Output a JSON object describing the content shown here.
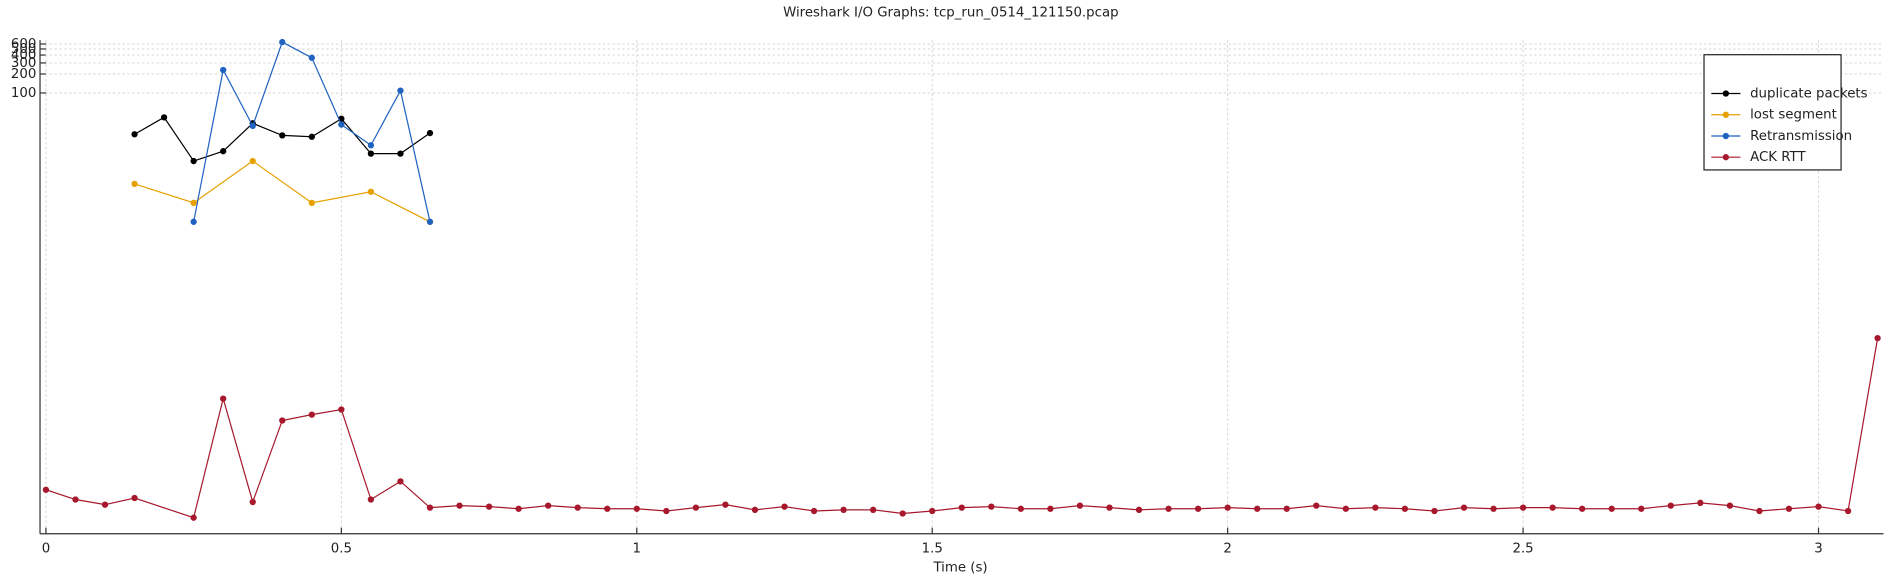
{
  "chart_data": {
    "type": "line",
    "title": "Wireshark I/O Graphs: tcp_run_0514_121150.pcap",
    "x_label": "Time (s)",
    "yscale": "log",
    "xlim": [
      -0.01,
      3.11
    ],
    "ylim": [
      1e-05,
      690
    ],
    "xticks": [
      0,
      0.5,
      1,
      1.5,
      2,
      2.5,
      3
    ],
    "yticks": [
      100,
      200,
      300,
      400,
      500,
      600
    ],
    "grid": true,
    "legend": "upper right",
    "series": [
      {
        "name": "duplicate packets",
        "color": "#000000",
        "x": [
          0.15,
          0.2,
          0.25,
          0.3,
          0.35,
          0.4,
          0.45,
          0.5,
          0.55,
          0.6,
          0.65
        ],
        "values": [
          22.1,
          41,
          8.3,
          11.9,
          33,
          21.2,
          20.2,
          39,
          10.9,
          10.9,
          23.1
        ]
      },
      {
        "name": "lost segment",
        "color": "#e6a000",
        "x": [
          0.15,
          0.25,
          0.35,
          0.45,
          0.55,
          0.65
        ],
        "values": [
          3.6,
          1.8,
          8.3,
          1.8,
          2.7,
          0.9
        ]
      },
      {
        "name": "Retransmission",
        "color": "#1f62c0",
        "x": [
          0.25,
          0.3,
          0.35,
          0.4,
          0.45,
          0.5,
          0.55,
          0.6,
          0.65
        ],
        "values": [
          0.9,
          232,
          30,
          644,
          362,
          31.5,
          14.8,
          109,
          0.9
        ]
      },
      {
        "name": "ACK RTT",
        "color": "#a8182c",
        "x": [
          0,
          0.05,
          0.1,
          0.15,
          0.25,
          0.3,
          0.35,
          0.4,
          0.45,
          0.5,
          0.55,
          0.6,
          0.65,
          0.7,
          0.75,
          0.8,
          0.85,
          0.9,
          0.95,
          1,
          1.05,
          1.1,
          1.15,
          1.2,
          1.25,
          1.3,
          1.35,
          1.4,
          1.45,
          1.5,
          1.55,
          1.6,
          1.65,
          1.7,
          1.75,
          1.8,
          1.85,
          1.9,
          1.95,
          2,
          2.05,
          2.1,
          2.15,
          2.2,
          2.25,
          2.3,
          2.35,
          2.4,
          2.45,
          2.5,
          2.55,
          2.6,
          2.65,
          2.7,
          2.75,
          2.8,
          2.85,
          2.9,
          2.95,
          3,
          3.05,
          3.1
        ],
        "values": [
          5e-05,
          3.5e-05,
          2.9e-05,
          3.7e-05,
          1.8e-05,
          0.0014,
          3.2e-05,
          0.00063,
          0.00078,
          0.00094,
          3.5e-05,
          6.8e-05,
          2.6e-05,
          2.8e-05,
          2.7e-05,
          2.5e-05,
          2.8e-05,
          2.6e-05,
          2.5e-05,
          2.5e-05,
          2.3e-05,
          2.6e-05,
          2.9e-05,
          2.4e-05,
          2.7e-05,
          2.3e-05,
          2.4e-05,
          2.4e-05,
          2.1e-05,
          2.3e-05,
          2.6e-05,
          2.7e-05,
          2.5e-05,
          2.5e-05,
          2.8e-05,
          2.6e-05,
          2.4e-05,
          2.5e-05,
          2.5e-05,
          2.6e-05,
          2.5e-05,
          2.5e-05,
          2.8e-05,
          2.5e-05,
          2.6e-05,
          2.5e-05,
          2.3e-05,
          2.6e-05,
          2.5e-05,
          2.6e-05,
          2.6e-05,
          2.5e-05,
          2.5e-05,
          2.5e-05,
          2.8e-05,
          3.1e-05,
          2.8e-05,
          2.3e-05,
          2.5e-05,
          2.7e-05,
          2.3e-05,
          0.0128
        ]
      }
    ]
  }
}
